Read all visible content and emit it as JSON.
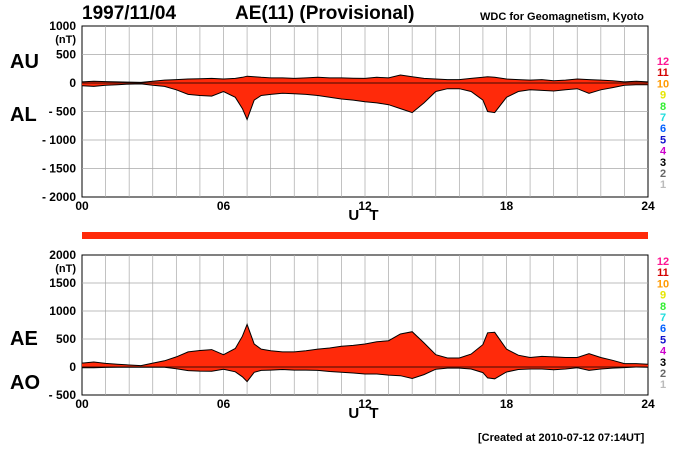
{
  "header": {
    "date": "1997/11/04",
    "title": "AE(11) (Provisional)",
    "source": "WDC for Geomagnetism, Kyoto"
  },
  "footer": {
    "created": "[Created at 2010-07-12 07:14UT]"
  },
  "colors": {
    "fill": "#ff2a0a",
    "grid": "#a8a8a8",
    "outline": "#000000",
    "station_scale": [
      "#ff1493",
      "#d40000",
      "#ff9a00",
      "#e6e600",
      "#33ee33",
      "#22dddd",
      "#0060ff",
      "#1010cc",
      "#cc00cc",
      "#000000",
      "#666666",
      "#bbbbbb"
    ]
  },
  "station_scale_labels": [
    "12",
    "11",
    "10",
    "9",
    "8",
    "7",
    "6",
    "5",
    "4",
    "3",
    "2",
    "1"
  ],
  "chart_data": [
    {
      "type": "area",
      "panel": "top",
      "unit_label": "(nT)",
      "left_labels": [
        "AU",
        "AL"
      ],
      "xlabel": "U T",
      "xlim": [
        0,
        24
      ],
      "xticks": [
        0,
        6,
        12,
        18,
        24
      ],
      "xtick_labels": [
        "00",
        "06",
        "12",
        "18",
        "24"
      ],
      "ylim": [
        -2000,
        1000
      ],
      "yticks": [
        1000,
        500,
        0,
        -500,
        -1000,
        -1500,
        -2000
      ],
      "ytick_labels": [
        "1000",
        "500",
        "0",
        "- 500",
        "- 1000",
        "- 1500",
        "- 2000"
      ],
      "grid": true,
      "series": [
        {
          "name": "AU",
          "x": [
            0,
            0.5,
            1,
            1.5,
            2,
            2.5,
            3,
            3.5,
            4,
            4.5,
            5,
            5.5,
            6,
            6.5,
            6.8,
            7,
            7.3,
            7.6,
            8,
            8.5,
            9,
            9.5,
            10,
            10.5,
            11,
            11.5,
            12,
            12.5,
            13,
            13.5,
            14,
            14.5,
            15,
            15.5,
            16,
            16.5,
            17,
            17.2,
            17.5,
            18,
            18.5,
            19,
            19.5,
            20,
            20.5,
            21,
            21.5,
            22,
            22.5,
            23,
            23.5,
            24
          ],
          "values": [
            20,
            30,
            25,
            20,
            15,
            10,
            30,
            50,
            60,
            70,
            75,
            80,
            70,
            80,
            100,
            120,
            110,
            100,
            90,
            90,
            80,
            90,
            100,
            90,
            90,
            85,
            80,
            100,
            90,
            140,
            110,
            80,
            70,
            60,
            60,
            80,
            100,
            110,
            100,
            70,
            60,
            50,
            60,
            40,
            50,
            70,
            60,
            50,
            40,
            20,
            30,
            20
          ]
        },
        {
          "name": "AL",
          "x": [
            0,
            0.5,
            1,
            1.5,
            2,
            2.5,
            3,
            3.5,
            4,
            4.5,
            5,
            5.5,
            6,
            6.5,
            6.8,
            7,
            7.3,
            7.6,
            8,
            8.5,
            9,
            9.5,
            10,
            10.5,
            11,
            11.5,
            12,
            12.5,
            13,
            13.5,
            14,
            14.5,
            15,
            15.5,
            16,
            16.5,
            17,
            17.2,
            17.5,
            18,
            18.5,
            19,
            19.5,
            20,
            20.5,
            21,
            21.5,
            22,
            22.5,
            23,
            23.5,
            24
          ],
          "values": [
            -50,
            -60,
            -40,
            -30,
            -20,
            -15,
            -40,
            -60,
            -120,
            -200,
            -220,
            -230,
            -150,
            -250,
            -450,
            -640,
            -300,
            -220,
            -200,
            -180,
            -190,
            -200,
            -220,
            -250,
            -280,
            -300,
            -330,
            -350,
            -380,
            -450,
            -520,
            -350,
            -150,
            -100,
            -100,
            -150,
            -300,
            -500,
            -520,
            -250,
            -150,
            -120,
            -130,
            -140,
            -120,
            -100,
            -180,
            -120,
            -80,
            -40,
            -30,
            -30
          ]
        }
      ]
    },
    {
      "type": "area",
      "panel": "bottom",
      "unit_label": "(nT)",
      "left_labels": [
        "AE",
        "AO"
      ],
      "xlabel": "U T",
      "xlim": [
        0,
        24
      ],
      "xticks": [
        0,
        6,
        12,
        18,
        24
      ],
      "xtick_labels": [
        "00",
        "06",
        "12",
        "18",
        "24"
      ],
      "ylim": [
        -500,
        2000
      ],
      "yticks": [
        2000,
        1500,
        1000,
        500,
        0,
        -500
      ],
      "ytick_labels": [
        "2000",
        "1500",
        "1000",
        "500",
        "0",
        "- 500"
      ],
      "grid": true,
      "series": [
        {
          "name": "AE",
          "x": [
            0,
            0.5,
            1,
            1.5,
            2,
            2.5,
            3,
            3.5,
            4,
            4.5,
            5,
            5.5,
            6,
            6.5,
            6.8,
            7,
            7.3,
            7.6,
            8,
            8.5,
            9,
            9.5,
            10,
            10.5,
            11,
            11.5,
            12,
            12.5,
            13,
            13.5,
            14,
            14.5,
            15,
            15.5,
            16,
            16.5,
            17,
            17.2,
            17.5,
            18,
            18.5,
            19,
            19.5,
            20,
            20.5,
            21,
            21.5,
            22,
            22.5,
            23,
            23.5,
            24
          ],
          "values": [
            70,
            90,
            65,
            50,
            35,
            25,
            70,
            110,
            180,
            270,
            295,
            310,
            220,
            330,
            550,
            760,
            410,
            320,
            290,
            270,
            270,
            290,
            320,
            340,
            370,
            385,
            410,
            450,
            470,
            590,
            630,
            430,
            220,
            160,
            160,
            230,
            400,
            610,
            620,
            320,
            210,
            170,
            190,
            180,
            170,
            170,
            240,
            170,
            120,
            60,
            60,
            50
          ]
        },
        {
          "name": "AO",
          "x": [
            0,
            0.5,
            1,
            1.5,
            2,
            2.5,
            3,
            3.5,
            4,
            4.5,
            5,
            5.5,
            6,
            6.5,
            6.8,
            7,
            7.3,
            7.6,
            8,
            8.5,
            9,
            9.5,
            10,
            10.5,
            11,
            11.5,
            12,
            12.5,
            13,
            13.5,
            14,
            14.5,
            15,
            15.5,
            16,
            16.5,
            17,
            17.2,
            17.5,
            18,
            18.5,
            19,
            19.5,
            20,
            20.5,
            21,
            21.5,
            22,
            22.5,
            23,
            23.5,
            24
          ],
          "values": [
            -15,
            -15,
            -8,
            -5,
            -3,
            -3,
            -5,
            -5,
            -30,
            -65,
            -73,
            -75,
            -40,
            -85,
            -175,
            -260,
            -95,
            -60,
            -55,
            -45,
            -55,
            -55,
            -60,
            -80,
            -95,
            -108,
            -125,
            -125,
            -145,
            -155,
            -205,
            -135,
            -40,
            -20,
            -20,
            -35,
            -100,
            -195,
            -210,
            -90,
            -45,
            -35,
            -35,
            -50,
            -35,
            -15,
            -60,
            -35,
            -20,
            -10,
            0,
            -5
          ]
        }
      ]
    }
  ],
  "data_coverage_bar": {
    "value": 1.0
  }
}
